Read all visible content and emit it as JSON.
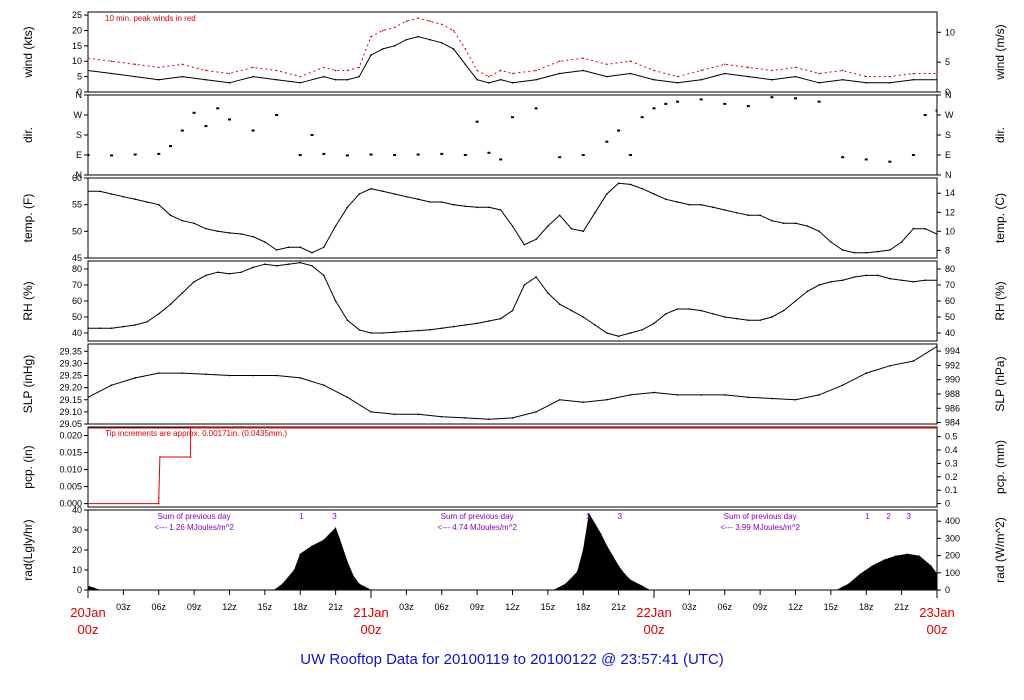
{
  "figure_title": "UW Rooftop Data for 20100119  to  20100122 @ 23:57:41  (UTC)",
  "time_axis": {
    "hours_total": 72,
    "day_labels": [
      {
        "hour": 0,
        "day": "20Jan",
        "hour_text": "00z"
      },
      {
        "hour": 24,
        "day": "21Jan",
        "hour_text": "00z"
      },
      {
        "hour": 48,
        "day": "22Jan",
        "hour_text": "00z"
      },
      {
        "hour": 72,
        "day": "23Jan",
        "hour_text": "00z"
      }
    ],
    "hour_ticks": [
      {
        "hour": 3,
        "label": "03z"
      },
      {
        "hour": 6,
        "label": "06z"
      },
      {
        "hour": 9,
        "label": "09z"
      },
      {
        "hour": 12,
        "label": "12z"
      },
      {
        "hour": 15,
        "label": "15z"
      },
      {
        "hour": 18,
        "label": "18z"
      },
      {
        "hour": 21,
        "label": "21z"
      },
      {
        "hour": 27,
        "label": "03z"
      },
      {
        "hour": 30,
        "label": "06z"
      },
      {
        "hour": 33,
        "label": "09z"
      },
      {
        "hour": 36,
        "label": "12z"
      },
      {
        "hour": 39,
        "label": "15z"
      },
      {
        "hour": 42,
        "label": "18z"
      },
      {
        "hour": 45,
        "label": "21z"
      },
      {
        "hour": 51,
        "label": "03z"
      },
      {
        "hour": 54,
        "label": "06z"
      },
      {
        "hour": 57,
        "label": "09z"
      },
      {
        "hour": 60,
        "label": "12z"
      },
      {
        "hour": 63,
        "label": "15z"
      },
      {
        "hour": 66,
        "label": "18z"
      },
      {
        "hour": 69,
        "label": "21z"
      }
    ]
  },
  "colors": {
    "trace": "#000000",
    "peak": "#dd0000",
    "annotation_red": "#dd0000",
    "annotation_purple": "#8800cc",
    "footer": "#1010cc",
    "day_label": "#dd0000"
  },
  "chart_data": [
    {
      "type": "line",
      "panel": "wind",
      "ylabel": "wind (kts)",
      "ylabel_right": "wind (m/s)",
      "ylim": [
        0,
        26
      ],
      "yticks": [
        0,
        5,
        10,
        15,
        20,
        25
      ],
      "right_ylim": [
        0,
        13.4
      ],
      "right_yticks": [
        0,
        5,
        10
      ],
      "annotation": "10 min. peak winds in red",
      "series": [
        {
          "x": [
            0,
            2,
            4,
            6,
            8,
            10,
            12,
            14,
            16,
            18,
            20,
            21,
            22,
            23,
            24,
            25,
            26,
            27,
            28,
            29,
            30,
            31,
            32,
            33,
            34,
            35,
            36,
            38,
            40,
            42,
            44,
            46,
            48,
            50,
            52,
            54,
            56,
            58,
            60,
            62,
            64,
            66,
            68,
            70,
            72
          ],
          "values": [
            7,
            6,
            5,
            4,
            5,
            4,
            3,
            5,
            4,
            3,
            5,
            4,
            4,
            5,
            12,
            14,
            15,
            17,
            18,
            17,
            16,
            14,
            9,
            4,
            3,
            4,
            3,
            4,
            6,
            7,
            5,
            6,
            4,
            3,
            4,
            6,
            5,
            4,
            5,
            3,
            4,
            3,
            3,
            4,
            4
          ]
        },
        {
          "x": [
            0,
            2,
            4,
            6,
            8,
            10,
            12,
            14,
            16,
            18,
            20,
            21,
            22,
            23,
            24,
            25,
            26,
            27,
            28,
            29,
            30,
            31,
            32,
            33,
            34,
            35,
            36,
            38,
            40,
            42,
            44,
            46,
            48,
            50,
            52,
            54,
            56,
            58,
            60,
            62,
            64,
            66,
            68,
            70,
            72
          ],
          "values": [
            11,
            10,
            9,
            8,
            9,
            7,
            6,
            8,
            7,
            5,
            8,
            7,
            7,
            8,
            18,
            20,
            21,
            23,
            24,
            23,
            22,
            20,
            14,
            7,
            5,
            7,
            6,
            7,
            10,
            11,
            9,
            10,
            7,
            5,
            7,
            9,
            8,
            7,
            8,
            6,
            7,
            5,
            5,
            6,
            6
          ]
        }
      ]
    },
    {
      "type": "scatter",
      "panel": "direction",
      "ylabel": "dir.",
      "ylabel_right": "dir.",
      "ylim": [
        0,
        360
      ],
      "yticks": [
        0,
        90,
        180,
        270,
        360
      ],
      "ytick_labels": [
        "N",
        "E",
        "S",
        "W",
        "N"
      ],
      "series": [
        {
          "x": [
            0,
            2,
            4,
            6,
            7,
            8,
            9,
            10,
            11,
            12,
            14,
            16,
            18,
            19,
            20,
            22,
            24,
            26,
            28,
            30,
            32,
            33,
            34,
            35,
            36,
            38,
            40,
            42,
            44,
            45,
            46,
            47,
            48,
            49,
            50,
            52,
            54,
            56,
            58,
            60,
            62,
            64,
            66,
            68,
            70,
            71,
            72
          ],
          "values": [
            90,
            88,
            92,
            95,
            130,
            200,
            280,
            220,
            300,
            250,
            200,
            270,
            90,
            180,
            95,
            88,
            92,
            90,
            92,
            95,
            90,
            240,
            100,
            70,
            260,
            300,
            80,
            90,
            150,
            200,
            90,
            260,
            300,
            320,
            330,
            340,
            320,
            310,
            350,
            345,
            330,
            80,
            70,
            60,
            90,
            270,
            290
          ]
        }
      ]
    },
    {
      "type": "line",
      "panel": "temperature",
      "ylabel": "temp. (F)",
      "ylabel_right": "temp. (C)",
      "ylim": [
        45,
        60
      ],
      "yticks": [
        45,
        50,
        55,
        60
      ],
      "right_ylim": [
        7.2,
        15.6
      ],
      "right_yticks": [
        8,
        10,
        12,
        14
      ],
      "series": [
        {
          "x": [
            0,
            1,
            2,
            3,
            4,
            5,
            6,
            7,
            8,
            9,
            10,
            11,
            12,
            13,
            14,
            15,
            16,
            17,
            18,
            19,
            20,
            21,
            22,
            23,
            24,
            25,
            26,
            27,
            28,
            29,
            30,
            31,
            32,
            33,
            34,
            35,
            36,
            37,
            38,
            39,
            40,
            41,
            42,
            43,
            44,
            45,
            46,
            47,
            48,
            49,
            50,
            51,
            52,
            53,
            54,
            55,
            56,
            57,
            58,
            59,
            60,
            61,
            62,
            63,
            64,
            65,
            66,
            67,
            68,
            69,
            70,
            71,
            72
          ],
          "values": [
            57.5,
            57.5,
            57,
            56.5,
            56,
            55.5,
            55,
            53,
            52,
            51.5,
            50.5,
            50,
            49.7,
            49.5,
            49,
            48,
            46.5,
            47,
            47,
            46,
            47,
            51,
            54.5,
            57,
            58,
            57.5,
            57,
            56.5,
            56,
            55.5,
            55.5,
            55,
            54.7,
            54.5,
            54.5,
            54,
            51,
            47.5,
            48.5,
            51,
            53,
            50.5,
            50,
            53.5,
            57,
            59,
            58.8,
            58,
            57,
            56,
            55.5,
            55,
            55,
            54.5,
            54,
            53.5,
            53,
            53,
            52,
            51.5,
            51.5,
            51,
            50,
            48,
            46.5,
            46,
            46,
            46.2,
            46.5,
            48,
            50.5,
            50.5,
            49.5
          ]
        }
      ]
    },
    {
      "type": "line",
      "panel": "humidity",
      "ylabel": "RH (%)",
      "ylabel_right": "RH (%)",
      "ylim": [
        35,
        85
      ],
      "yticks": [
        40,
        50,
        60,
        70,
        80
      ],
      "right_ylim": [
        35,
        85
      ],
      "right_yticks": [
        40,
        50,
        60,
        70,
        80
      ],
      "series": [
        {
          "x": [
            0,
            1,
            2,
            3,
            4,
            5,
            6,
            7,
            8,
            9,
            10,
            11,
            12,
            13,
            14,
            15,
            16,
            17,
            18,
            19,
            20,
            21,
            22,
            23,
            24,
            25,
            26,
            27,
            28,
            29,
            30,
            31,
            32,
            33,
            34,
            35,
            36,
            37,
            38,
            39,
            40,
            41,
            42,
            43,
            44,
            45,
            46,
            47,
            48,
            49,
            50,
            51,
            52,
            53,
            54,
            55,
            56,
            57,
            58,
            59,
            60,
            61,
            62,
            63,
            64,
            65,
            66,
            67,
            68,
            69,
            70,
            71,
            72
          ],
          "values": [
            43,
            43,
            43,
            44,
            45,
            47,
            52,
            58,
            65,
            72,
            76,
            78,
            77,
            78,
            81,
            83,
            82,
            83,
            84,
            82,
            76,
            60,
            48,
            42,
            40,
            40,
            40.5,
            41,
            41.5,
            42,
            43,
            44,
            45,
            46,
            47.5,
            49,
            54,
            70,
            75,
            65,
            58,
            54,
            50,
            45,
            40,
            38,
            40,
            42,
            46,
            52,
            55,
            55,
            54,
            52,
            50,
            49,
            48,
            48,
            50,
            54,
            60,
            66,
            70,
            72,
            73,
            75,
            76,
            76,
            74,
            73,
            72,
            73,
            73
          ]
        }
      ]
    },
    {
      "type": "line",
      "panel": "pressure",
      "ylabel": "SLP (inHg)",
      "ylabel_right": "SLP (hPa)",
      "ylim": [
        29.05,
        29.38
      ],
      "yticks": [
        29.05,
        29.1,
        29.15,
        29.2,
        29.25,
        29.3,
        29.35
      ],
      "ytick_labels": [
        "29.05",
        "29.10",
        "29.15",
        "29.20",
        "29.25",
        "29.30",
        "29.35"
      ],
      "right_ylim": [
        983.8,
        995.0
      ],
      "right_yticks": [
        984,
        986,
        988,
        990,
        992,
        994
      ],
      "series": [
        {
          "x": [
            0,
            2,
            4,
            6,
            8,
            10,
            12,
            14,
            16,
            18,
            20,
            22,
            24,
            26,
            28,
            30,
            32,
            34,
            36,
            38,
            40,
            42,
            44,
            46,
            48,
            50,
            52,
            54,
            56,
            58,
            60,
            62,
            64,
            66,
            68,
            70,
            72
          ],
          "values": [
            29.16,
            29.21,
            29.24,
            29.26,
            29.26,
            29.255,
            29.25,
            29.25,
            29.25,
            29.24,
            29.21,
            29.16,
            29.1,
            29.09,
            29.09,
            29.08,
            29.075,
            29.07,
            29.075,
            29.1,
            29.15,
            29.14,
            29.15,
            29.17,
            29.18,
            29.17,
            29.17,
            29.17,
            29.16,
            29.155,
            29.15,
            29.17,
            29.21,
            29.26,
            29.29,
            29.31,
            29.37
          ]
        }
      ]
    },
    {
      "type": "line",
      "panel": "precipitation",
      "ylabel": "pcp. (in)",
      "ylabel_right": "pcp. (mm)",
      "ylim": [
        -0.001,
        0.0225
      ],
      "yticks": [
        0.0,
        0.005,
        0.01,
        0.015,
        0.02
      ],
      "ytick_labels": [
        "0.000",
        "0.005",
        "0.010",
        "0.015",
        "0.020"
      ],
      "right_ylim": [
        -0.0254,
        0.5715
      ],
      "right_yticks": [
        0,
        0.1,
        0.2,
        0.3,
        0.4,
        0.5
      ],
      "annotation": "Tip increments are approx. 0.00171in. (0.0435mm.)",
      "series": [
        {
          "x": [
            0,
            6,
            6,
            6.1,
            8.7,
            8.7,
            9,
            72
          ],
          "values": [
            0,
            0,
            0.00171,
            0.0137,
            0.0137,
            0.0225,
            0.0225,
            0.0225
          ]
        }
      ]
    },
    {
      "type": "area",
      "panel": "radiation",
      "ylabel": "rad(Lgly/hr)",
      "ylabel_right": "rad (W/m^2)",
      "ylim": [
        0,
        40
      ],
      "yticks": [
        0,
        10,
        20,
        30,
        40
      ],
      "right_ylim": [
        0,
        465
      ],
      "right_yticks": [
        0,
        100,
        200,
        300,
        400
      ],
      "day_sums": [
        {
          "hour": 9,
          "line1": "Sum of previous day",
          "line2": "<--- 1.26 MJoules/m^2"
        },
        {
          "hour": 33,
          "line1": "Sum of previous day",
          "line2": "<--- 4.74 MJoules/m^2"
        },
        {
          "hour": 57,
          "line1": "Sum of previous day",
          "line2": "<--- 3.99 MJoules/m^2"
        }
      ],
      "hour_markers": [
        {
          "hour": 18.1,
          "label": "1"
        },
        {
          "hour": 20.9,
          "label": "3"
        },
        {
          "hour": 42.4,
          "label": "1"
        },
        {
          "hour": 45.1,
          "label": "3"
        },
        {
          "hour": 66.1,
          "label": "1"
        },
        {
          "hour": 67.9,
          "label": "2"
        },
        {
          "hour": 69.6,
          "label": "3"
        }
      ],
      "series": [
        {
          "x": [
            0,
            0.5,
            1,
            15.8,
            16.5,
            17.5,
            18,
            19,
            20,
            20.5,
            21,
            21.3,
            22,
            22.5,
            23,
            24,
            39.5,
            40.5,
            41.5,
            42,
            42.5,
            43,
            43.5,
            44,
            44.5,
            45,
            45.5,
            46,
            47,
            47.6,
            63.5,
            64.5,
            65.5,
            66.5,
            67.5,
            68.5,
            69.5,
            70.5,
            71.5,
            72
          ],
          "values": [
            2,
            1,
            0,
            0,
            3,
            10,
            18,
            22,
            25,
            28,
            31,
            26,
            14,
            7,
            3,
            0,
            0,
            3,
            9,
            20,
            38,
            33,
            28,
            22,
            17,
            12,
            8,
            5,
            2,
            0,
            0,
            3,
            8,
            12,
            15,
            17,
            18,
            17,
            12,
            8
          ]
        }
      ]
    }
  ]
}
